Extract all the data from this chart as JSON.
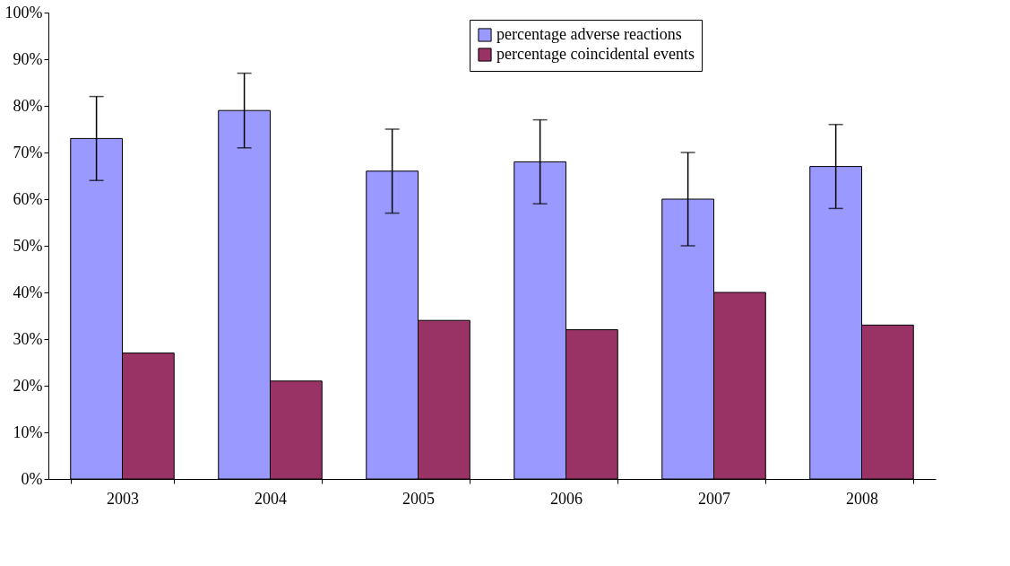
{
  "chart_data": {
    "type": "bar",
    "categories": [
      "2003",
      "2004",
      "2005",
      "2006",
      "2007",
      "2008"
    ],
    "series": [
      {
        "name": "percentage adverse reactions",
        "color": "#9999ff",
        "values": [
          73,
          79,
          66,
          68,
          60,
          67
        ],
        "errors": [
          [
            64,
            82
          ],
          [
            71,
            87
          ],
          [
            57,
            75
          ],
          [
            59,
            77
          ],
          [
            50,
            70
          ],
          [
            58,
            76
          ]
        ]
      },
      {
        "name": "percentage coincidental events",
        "color": "#993366",
        "values": [
          27,
          21,
          34,
          32,
          40,
          33
        ]
      }
    ],
    "ylim": [
      0,
      100
    ],
    "yticks": [
      {
        "value": 0,
        "label": "0%"
      },
      {
        "value": 10,
        "label": "10%"
      },
      {
        "value": 20,
        "label": "20%"
      },
      {
        "value": 30,
        "label": "30%"
      },
      {
        "value": 40,
        "label": "40%"
      },
      {
        "value": 50,
        "label": "50%"
      },
      {
        "value": 60,
        "label": "60%"
      },
      {
        "value": 70,
        "label": "70%"
      },
      {
        "value": 80,
        "label": "80%"
      },
      {
        "value": 90,
        "label": "90%"
      },
      {
        "value": 100,
        "label": "100%"
      }
    ],
    "grid": false,
    "legend": "top right"
  }
}
